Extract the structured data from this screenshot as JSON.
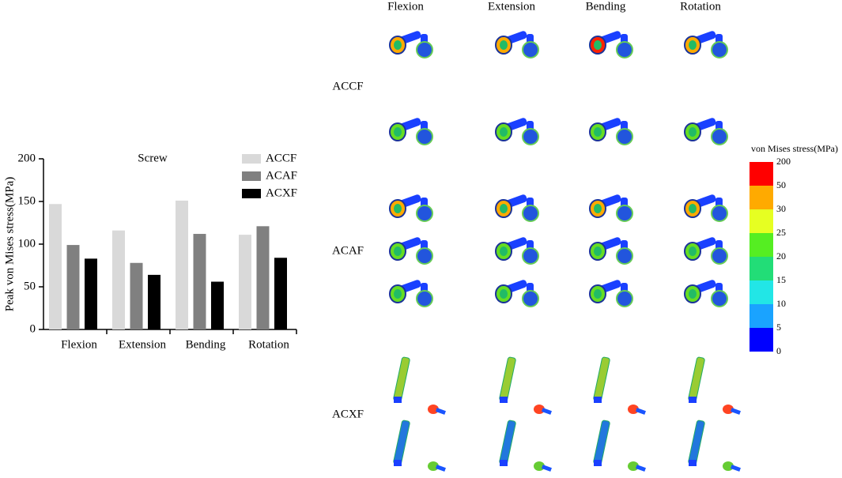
{
  "chart_data": {
    "type": "bar",
    "title": "Screw",
    "y_label": "Peak von Mises stress(MPa)",
    "categories": [
      "Flexion",
      "Extension",
      "Bending",
      "Rotation"
    ],
    "series": [
      {
        "name": "ACCF",
        "color": "#d9d9d9",
        "values": [
          147,
          116,
          151,
          111
        ]
      },
      {
        "name": "ACAF",
        "color": "#808080",
        "values": [
          99,
          78,
          112,
          121
        ]
      },
      {
        "name": "ACXF",
        "color": "#000000",
        "values": [
          83,
          64,
          56,
          84
        ]
      }
    ],
    "ylim": [
      0,
      200
    ],
    "yticks": [
      0,
      50,
      100,
      150,
      200
    ]
  },
  "figure": {
    "columns": [
      "Flexion",
      "Extension",
      "Bending",
      "Rotation"
    ],
    "rows": [
      "ACCF",
      "ACAF",
      "ACXF"
    ],
    "colorbar": {
      "title": "von Mises stress(MPa)",
      "levels": [
        0,
        5,
        10,
        15,
        20,
        25,
        30,
        50,
        200
      ],
      "colors": [
        "#0000ff",
        "#1aa3ff",
        "#22e6e6",
        "#22dd77",
        "#55ee22",
        "#e6ff22",
        "#ffaa00",
        "#ff0000"
      ]
    }
  }
}
